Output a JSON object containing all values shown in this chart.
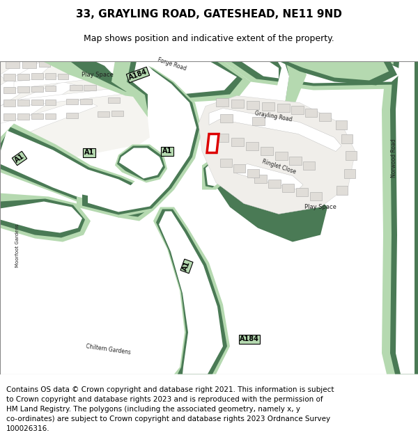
{
  "title": "33, GRAYLING ROAD, GATESHEAD, NE11 9ND",
  "subtitle": "Map shows position and indicative extent of the property.",
  "footer": "Contains OS data © Crown copyright and database right 2021. This information is subject\nto Crown copyright and database rights 2023 and is reproduced with the permission of\nHM Land Registry. The polygons (including the associated geometry, namely x, y\nco-ordinates) are subject to Crown copyright and database rights 2023 Ordnance Survey\n100026316.",
  "map_bg": "#ffffff",
  "green_dark": "#4a7a55",
  "green_light": "#b5d9b0",
  "green_mid": "#6faa72",
  "building_fill": "#e0ddd8",
  "building_edge": "#aaaaaa",
  "road_white": "#ffffff",
  "plot_color": "#dd0000",
  "title_fontsize": 11,
  "subtitle_fontsize": 9,
  "footer_fontsize": 7.5,
  "label_color": "#222222"
}
